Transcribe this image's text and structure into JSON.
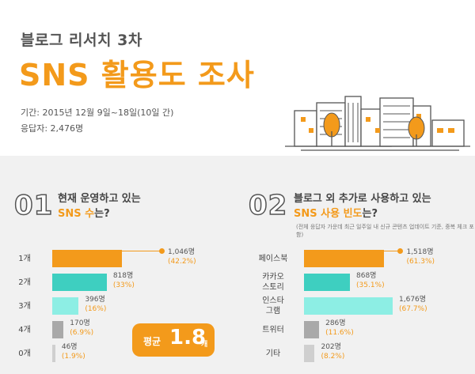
{
  "header": {
    "subtitle": "블로그 리서치 3차",
    "title": "SNS 활용도 조사",
    "period": "기간: 2015년 12월 9일~18일(10일 간)",
    "respondents": "응답자: 2,476명"
  },
  "q1": {
    "number": "01",
    "line1": "현재 운영하고 있는",
    "line2_prefix": "SNS ",
    "line2_highlight": "수",
    "line2_suffix": "는?",
    "average_label": "평균",
    "average_value": "1.8",
    "average_unit": "개"
  },
  "q2": {
    "number": "02",
    "line1": "블로그 외 추가로 사용하고 있는",
    "line2_highlight": "SNS 사용 빈도",
    "line2_suffix": "는?",
    "note": "(전체 응답자 가운데 최근 일주일 내 신규 콘텐츠 업데이트 기준, 중복 체크 포함)"
  },
  "colors": {
    "orange": "#f39a1b",
    "teal_dark": "#3ecfc0",
    "teal_light": "#8deee4",
    "gray_dark": "#a9a9a9",
    "gray_light": "#cfcfcf"
  },
  "chart_data": [
    {
      "type": "bar",
      "orientation": "horizontal",
      "categories": [
        "1개",
        "2개",
        "3개",
        "4개",
        "0개"
      ],
      "values": [
        1046,
        818,
        396,
        170,
        46
      ],
      "value_labels": [
        "1,046명",
        "818명",
        "396명",
        "170명",
        "46명"
      ],
      "percent_labels": [
        "(42.2%)",
        "(33%)",
        "(16%)",
        "(6.9%)",
        "(1.9%)"
      ],
      "bar_colors": [
        "#f39a1b",
        "#3ecfc0",
        "#8deee4",
        "#a9a9a9",
        "#cfcfcf"
      ],
      "xlim": [
        0,
        1046
      ]
    },
    {
      "type": "bar",
      "orientation": "horizontal",
      "categories": [
        "페이스북",
        "카카오 스토리",
        "인스타 그램",
        "트위터",
        "기타"
      ],
      "category_lines": [
        [
          "페이스북"
        ],
        [
          "카카오",
          "스토리"
        ],
        [
          "인스타",
          "그램"
        ],
        [
          "트위터"
        ],
        [
          "기타"
        ]
      ],
      "values": [
        1518,
        868,
        1676,
        286,
        202
      ],
      "value_labels": [
        "1,518명",
        "868명",
        "1,676명",
        "286명",
        "202명"
      ],
      "percent_labels": [
        "(61.3%)",
        "(35.1%)",
        "(67.7%)",
        "(11.6%)",
        "(8.2%)"
      ],
      "bar_colors": [
        "#f39a1b",
        "#3ecfc0",
        "#8deee4",
        "#a9a9a9",
        "#cfcfcf"
      ],
      "xlim": [
        0,
        1676
      ]
    }
  ]
}
